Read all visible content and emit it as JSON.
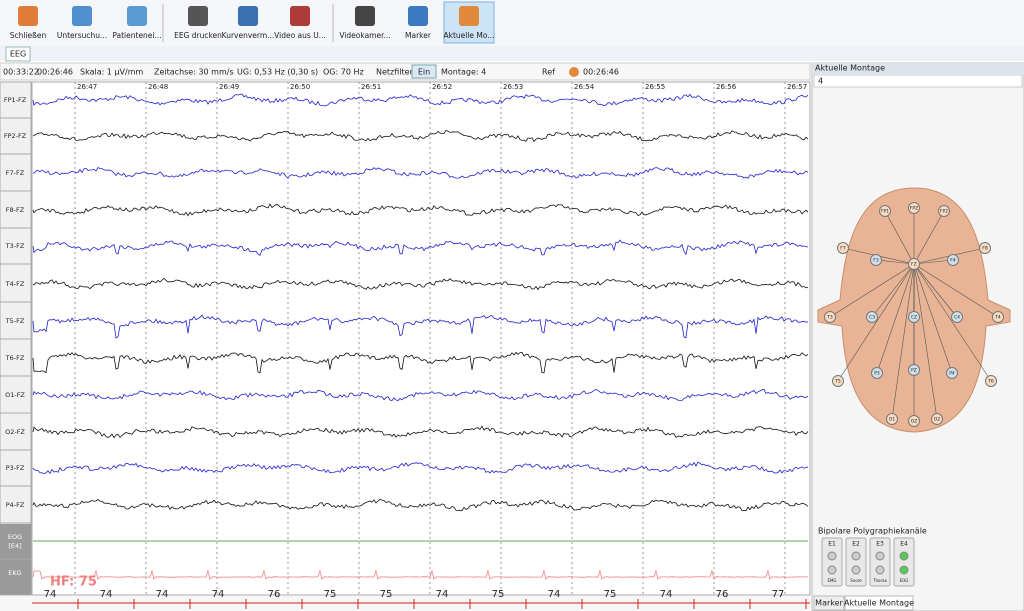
{
  "toolbar": {
    "buttons": [
      "Schließen",
      "Untersuchu...",
      "Patientenei...",
      "EEG drucken",
      "Kurvenverm...",
      "Video aus U...",
      "Videokamer...",
      "Marker",
      "Aktuelle Mo..."
    ]
  },
  "tab": "EEG",
  "status": {
    "time_total": "00:33:22",
    "time_pos": "00:26:46",
    "scale": "Skala: 1 µV/mm",
    "timebase": "Zeitachse: 30 mm/s",
    "lowcut": "UG: 0,53 Hz (0,30 s)",
    "highcut": "OG: 70 Hz",
    "notch_label": "Netzfilter:",
    "notch_button": "Ein",
    "montage": "Montage: 4",
    "ref": "Ref",
    "marker_time": "00:26:46"
  },
  "time_labels": [
    "26:47",
    "26:48",
    "26:49",
    "26:50",
    "26:51",
    "26:52",
    "26:53",
    "26:54",
    "26:55",
    "26:56",
    "26:57"
  ],
  "channels": [
    "FP1-FZ",
    "FP2-FZ",
    "F7-FZ",
    "F8-FZ",
    "T3-FZ",
    "T4-FZ",
    "T5-FZ",
    "T6-FZ",
    "O1-FZ",
    "O2-FZ",
    "P3-FZ",
    "P4-FZ",
    "EOG",
    "EKG"
  ],
  "eog_input": "[E4]",
  "heart_rate": "HF: 75",
  "bpm_row": [
    "74",
    "74",
    "74",
    "74",
    "76",
    "75",
    "75",
    "74",
    "75",
    "74",
    "75",
    "74",
    "76",
    "77"
  ],
  "panel": {
    "title": "Aktuelle Montage",
    "montage_value": "4",
    "electrodes": [
      "FP1",
      "FPZ",
      "FP2",
      "F7",
      "F3",
      "FZ",
      "F4",
      "F8",
      "T3",
      "C3",
      "CZ",
      "C4",
      "T4",
      "T5",
      "P3",
      "PZ",
      "P4",
      "T6",
      "O1",
      "OZ",
      "O2"
    ],
    "poly_title": "Bipolare Polygraphiekanäle",
    "poly_channels": [
      "E1",
      "E2",
      "E3",
      "E4"
    ],
    "poly_sub": [
      "EMG",
      "Snore",
      "Thorax",
      "EOG"
    ]
  },
  "bottom_tabs": [
    "Marker",
    "Aktuelle Montage"
  ]
}
